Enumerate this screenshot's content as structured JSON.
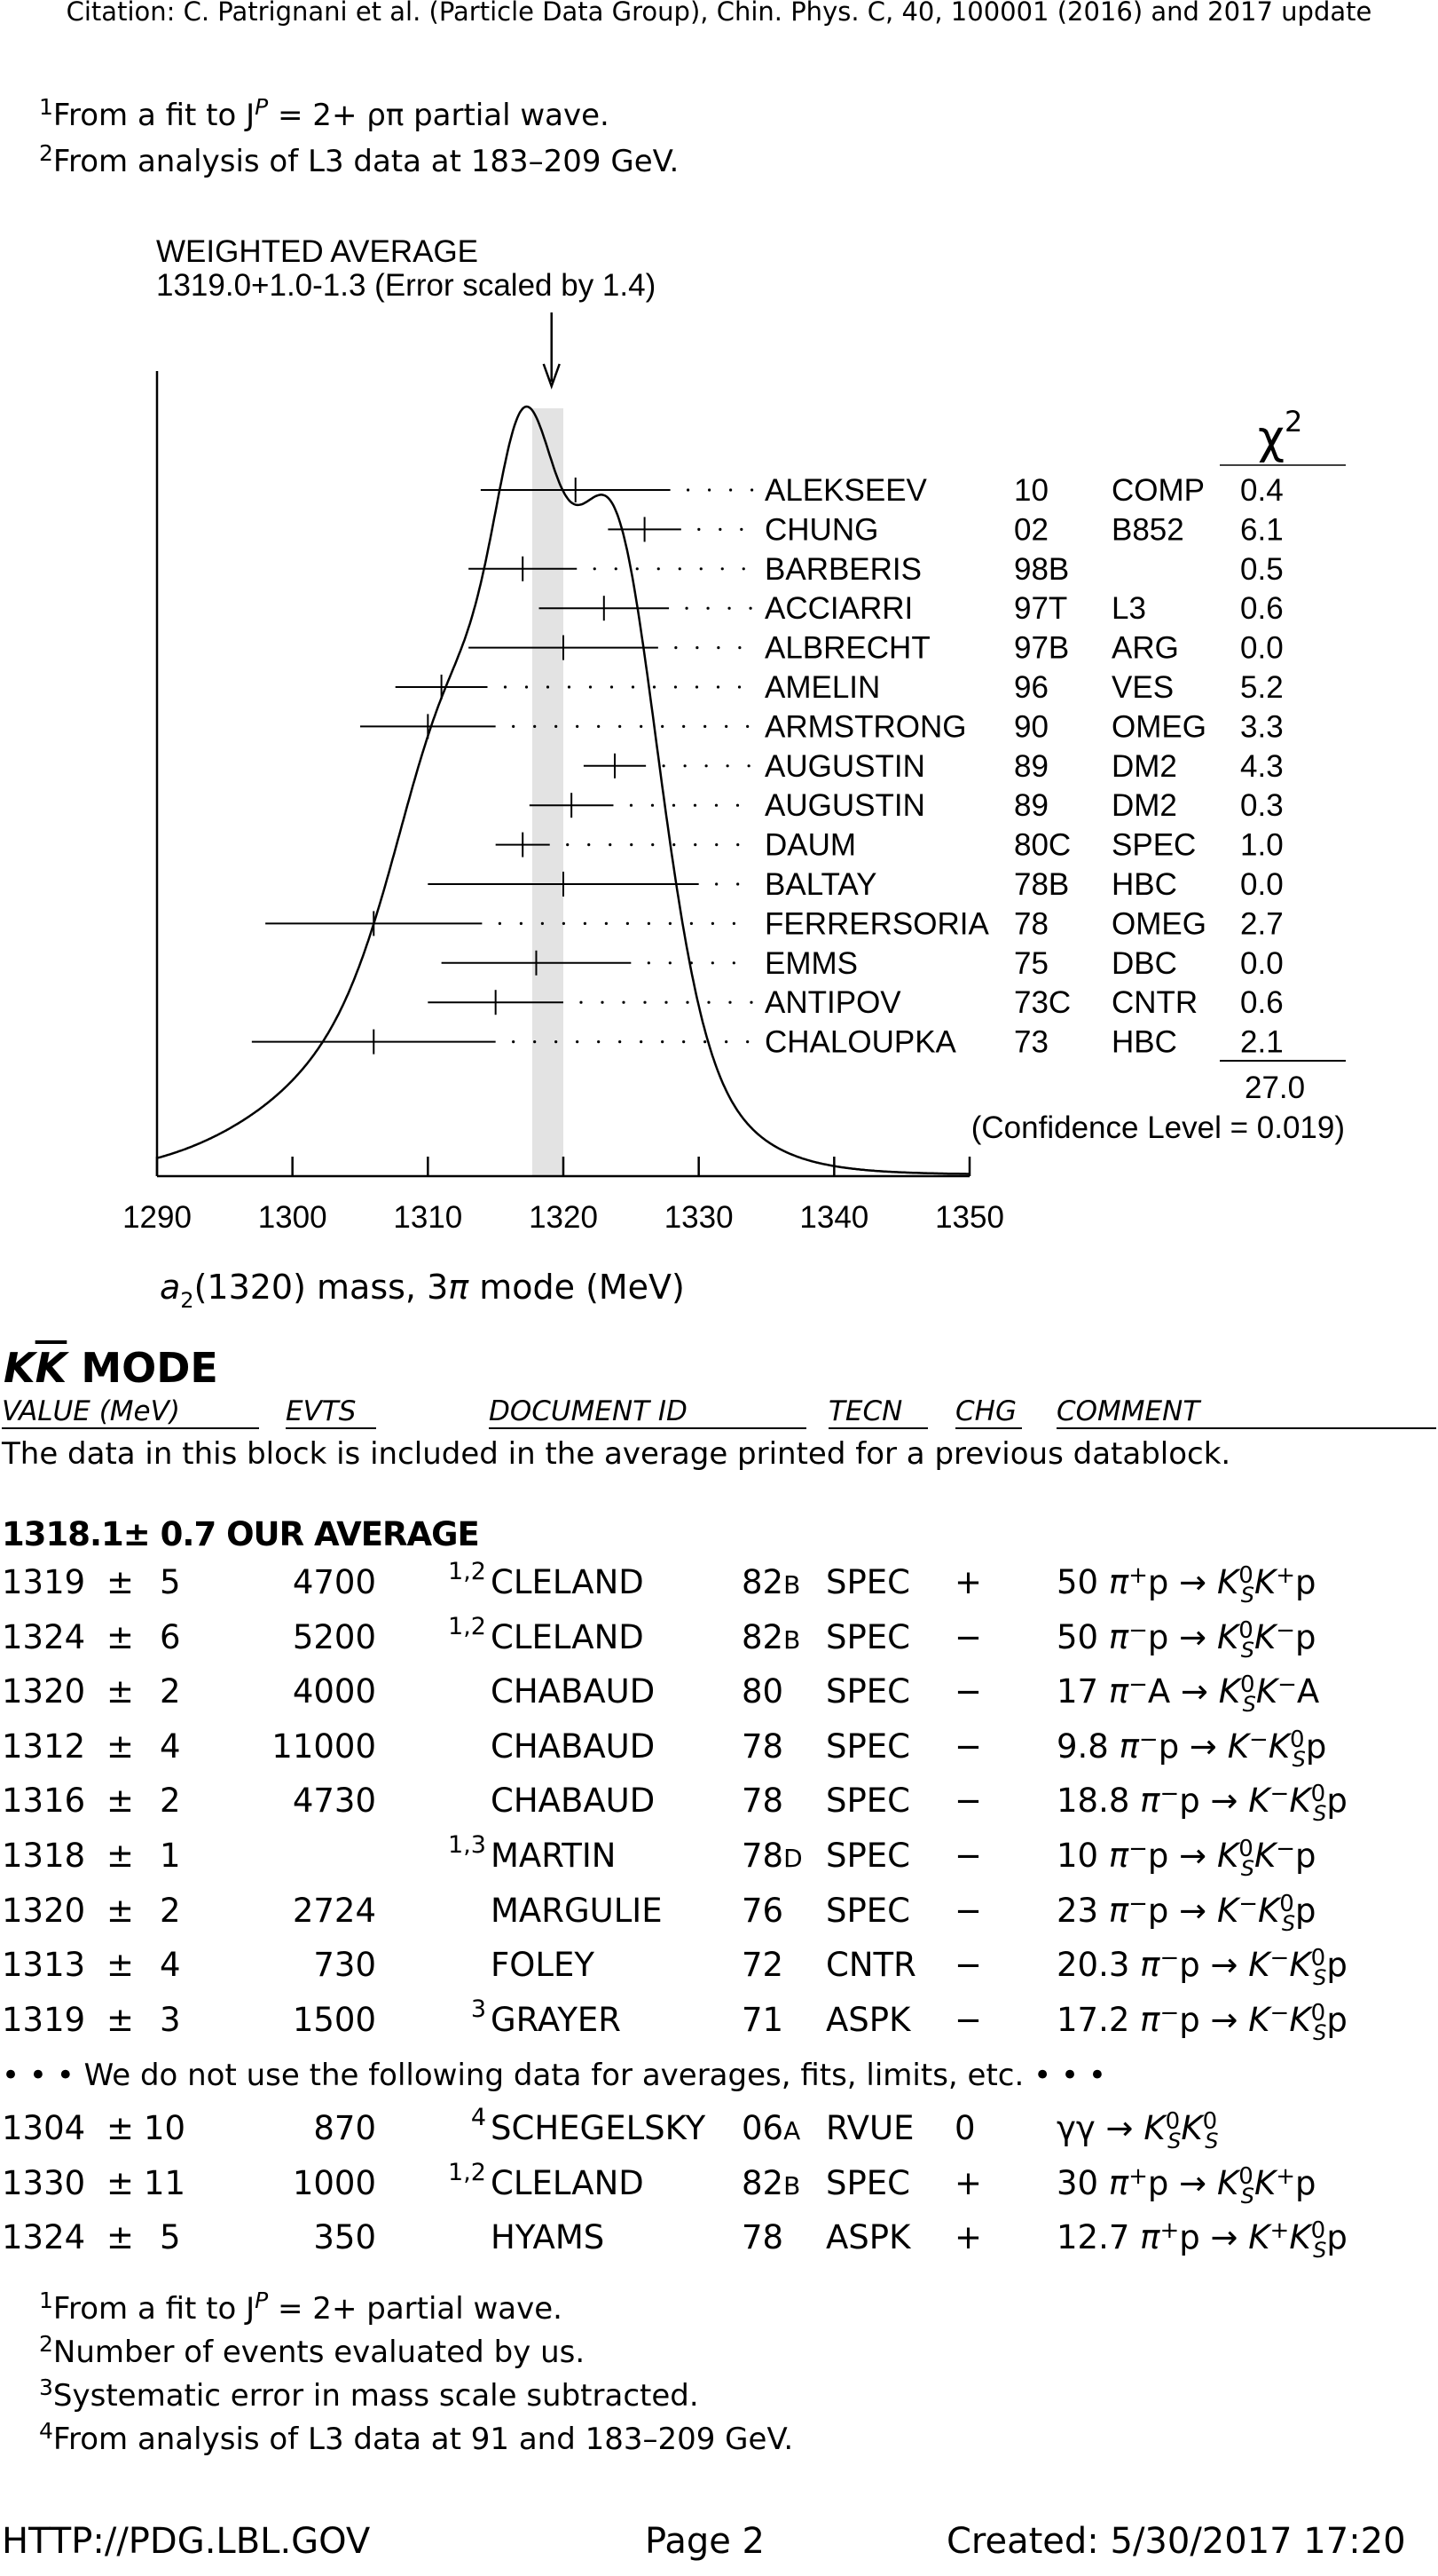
{
  "citation": "Citation: C. Patrignani et al. (Particle Data Group), Chin. Phys. C, 40, 100001 (2016) and 2017 update",
  "top_footnotes": [
    {
      "mark": "1",
      "text": "From a fit to J",
      "tail": " = 2+ ρπ partial wave.",
      "sup": "P"
    },
    {
      "mark": "2",
      "text": "From analysis of L3 data at 183–209 GeV."
    }
  ],
  "chart_data": {
    "type": "ideogram",
    "title": "WEIGHTED AVERAGE",
    "subtitle": "1319.0+1.0-1.3 (Error scaled by 1.4)",
    "xlabel": "a2(1320) mass, 3π mode (MeV)",
    "xlim": [
      1290,
      1350
    ],
    "ticks": [
      "1290",
      "1300",
      "1310",
      "1320",
      "1330",
      "1340",
      "1350"
    ],
    "average": 1319.0,
    "average_band": [
      1317.7,
      1320.0
    ],
    "chi2_header": "χ2",
    "measurements": [
      {
        "name": "ALEKSEEV",
        "year": "10",
        "tech": "COMP",
        "chi2": "0.4",
        "value": 1320.9,
        "err": 7.0
      },
      {
        "name": "CHUNG",
        "year": "02",
        "tech": "B852",
        "chi2": "6.1",
        "value": 1326.0,
        "err": 2.7
      },
      {
        "name": "BARBERIS",
        "year": "98B",
        "tech": "",
        "chi2": "0.5",
        "value": 1317.0,
        "err": 4.0
      },
      {
        "name": "ACCIARRI",
        "year": "97T",
        "tech": "L3",
        "chi2": "0.6",
        "value": 1323.0,
        "err": 4.8
      },
      {
        "name": "ALBRECHT",
        "year": "97B",
        "tech": "ARG",
        "chi2": "0.0",
        "value": 1320.0,
        "err": 7.0
      },
      {
        "name": "AMELIN",
        "year": "96",
        "tech": "VES",
        "chi2": "5.2",
        "value": 1311.0,
        "err": 3.4
      },
      {
        "name": "ARMSTRONG",
        "year": "90",
        "tech": "OMEG",
        "chi2": "3.3",
        "value": 1310.0,
        "err": 5.0
      },
      {
        "name": "AUGUSTIN",
        "year": "89",
        "tech": "DM2",
        "chi2": "4.3",
        "value": 1323.8,
        "err": 2.3
      },
      {
        "name": "AUGUSTIN",
        "year": "89",
        "tech": "DM2",
        "chi2": "0.3",
        "value": 1320.6,
        "err": 3.1
      },
      {
        "name": "DAUM",
        "year": "80C",
        "tech": "SPEC",
        "chi2": "1.0",
        "value": 1317.0,
        "err": 2.0
      },
      {
        "name": "BALTAY",
        "year": "78B",
        "tech": "HBC",
        "chi2": "0.0",
        "value": 1320.0,
        "err": 10.0
      },
      {
        "name": "FERRERSORIA",
        "year": "78",
        "tech": "OMEG",
        "chi2": "2.7",
        "value": 1306.0,
        "err": 8.0
      },
      {
        "name": "EMMS",
        "year": "75",
        "tech": "DBC",
        "chi2": "0.0",
        "value": 1318.0,
        "err": 7.0
      },
      {
        "name": "ANTIPOV",
        "year": "73C",
        "tech": "CNTR",
        "chi2": "0.6",
        "value": 1315.0,
        "err": 5.0
      },
      {
        "name": "CHALOUPKA",
        "year": "73",
        "tech": "HBC",
        "chi2": "2.1",
        "value": 1306.0,
        "err": 9.0
      }
    ],
    "chi2_total": "27.0",
    "confidence": "(Confidence Level = 0.019)"
  },
  "section_title": "KK MODE",
  "columns": [
    "VALUE (MeV)",
    "EVTS",
    "DOCUMENT ID",
    "TECN",
    "CHG",
    "COMMENT"
  ],
  "block_note": "The data in this block is included in the average printed for a previous datablock.",
  "our_average": "1318.1±  0.7 OUR AVERAGE",
  "rows": [
    {
      "value": "1319",
      "err": "5",
      "evts": "4700",
      "note": "1,2",
      "doc": "CLELAND",
      "year": "82B",
      "tecn": "SPEC",
      "chg": "+",
      "comment": "50 π+p → K0SK+p"
    },
    {
      "value": "1324",
      "err": "6",
      "evts": "5200",
      "note": "1,2",
      "doc": "CLELAND",
      "year": "82B",
      "tecn": "SPEC",
      "chg": "−",
      "comment": "50 π−p → K0SK−p"
    },
    {
      "value": "1320",
      "err": "2",
      "evts": "4000",
      "note": "",
      "doc": "CHABAUD",
      "year": "80",
      "tecn": "SPEC",
      "chg": "−",
      "comment": "17 π−A → K0SK−A"
    },
    {
      "value": "1312",
      "err": "4",
      "evts": "11000",
      "note": "",
      "doc": "CHABAUD",
      "year": "78",
      "tecn": "SPEC",
      "chg": "−",
      "comment": "9.8 π−p → K−K0Sp"
    },
    {
      "value": "1316",
      "err": "2",
      "evts": "4730",
      "note": "",
      "doc": "CHABAUD",
      "year": "78",
      "tecn": "SPEC",
      "chg": "−",
      "comment": "18.8 π−p → K−K0Sp"
    },
    {
      "value": "1318",
      "err": "1",
      "evts": "",
      "note": "1,3",
      "doc": "MARTIN",
      "year": "78D",
      "tecn": "SPEC",
      "chg": "−",
      "comment": "10 π−p → K0SK−p"
    },
    {
      "value": "1320",
      "err": "2",
      "evts": "2724",
      "note": "",
      "doc": "MARGULIE",
      "year": "76",
      "tecn": "SPEC",
      "chg": "−",
      "comment": "23 π−p → K−K0Sp"
    },
    {
      "value": "1313",
      "err": "4",
      "evts": "730",
      "note": "",
      "doc": "FOLEY",
      "year": "72",
      "tecn": "CNTR",
      "chg": "−",
      "comment": "20.3 π−p → K−K0Sp"
    },
    {
      "value": "1319",
      "err": "3",
      "evts": "1500",
      "note": "3",
      "doc": "GRAYER",
      "year": "71",
      "tecn": "ASPK",
      "chg": "−",
      "comment": "17.2 π−p → K−K0Sp"
    }
  ],
  "not_used": "• • • We do not use the following data for averages, fits, limits, etc. • • •",
  "rows2": [
    {
      "value": "1304",
      "err": "10",
      "evts": "870",
      "note": "4",
      "doc": "SCHEGELSKY",
      "year": "06A",
      "tecn": "RVUE",
      "chg": "0",
      "comment": "γγ → K0SK0S"
    },
    {
      "value": "1330",
      "err": "11",
      "evts": "1000",
      "note": "1,2",
      "doc": "CLELAND",
      "year": "82B",
      "tecn": "SPEC",
      "chg": "+",
      "comment": "30 π+p → K0SK+p"
    },
    {
      "value": "1324",
      "err": "5",
      "evts": "350",
      "note": "",
      "doc": "HYAMS",
      "year": "78",
      "tecn": "ASPK",
      "chg": "+",
      "comment": "12.7 π+p → K+K0Sp"
    }
  ],
  "bottom_footnotes": [
    {
      "mark": "1",
      "text": "From a fit to J",
      "sup": "P",
      "tail": " = 2+ partial wave."
    },
    {
      "mark": "2",
      "text": "Number of events evaluated by us."
    },
    {
      "mark": "3",
      "text": "Systematic error in mass scale subtracted."
    },
    {
      "mark": "4",
      "text": "From analysis of L3 data at 91 and 183–209 GeV."
    }
  ],
  "footer": {
    "url": "HTTP://PDG.LBL.GOV",
    "page": "Page 2",
    "created": "Created: 5/30/2017 17:20"
  }
}
